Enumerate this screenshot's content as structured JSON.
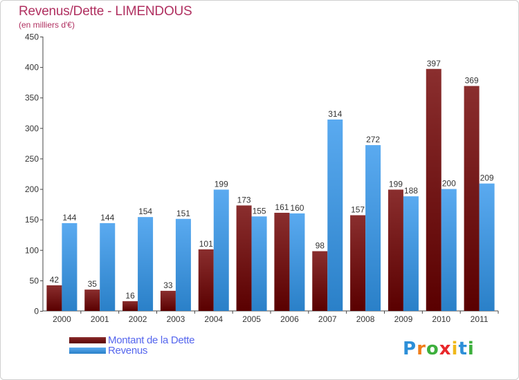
{
  "title": "Revenus/Dette - LIMENDOUS",
  "subtitle": "(en milliers d'€)",
  "logo": {
    "text": "Proxiti",
    "letter_colors": [
      "#2d8fd8",
      "#f07d1a",
      "#3daf3d",
      "#e8282b",
      "#f0b81a",
      "#2d8fd8",
      "#3daf3d"
    ]
  },
  "chart_data": {
    "type": "bar",
    "categories": [
      "2000",
      "2001",
      "2002",
      "2003",
      "2004",
      "2005",
      "2006",
      "2007",
      "2008",
      "2009",
      "2010",
      "2011"
    ],
    "series": [
      {
        "name": "Montant de la Dette",
        "values": [
          42,
          35,
          16,
          33,
          101,
          173,
          161,
          98,
          157,
          199,
          397,
          369
        ],
        "color_light": "#8a2e2e",
        "color_dark": "#5a0000"
      },
      {
        "name": "Revenus",
        "values": [
          144,
          144,
          154,
          151,
          199,
          155,
          160,
          314,
          272,
          188,
          200,
          209
        ],
        "color_light": "#5aaaf0",
        "color_dark": "#2a80c8"
      }
    ],
    "ylim": [
      0,
      450
    ],
    "yticks": [
      0,
      50,
      100,
      150,
      200,
      250,
      300,
      350,
      400,
      450
    ],
    "grid": false,
    "legend_position": "bottom-left"
  }
}
